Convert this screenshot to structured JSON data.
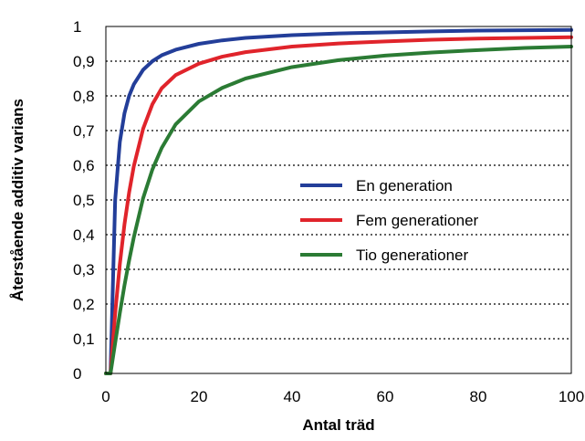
{
  "chart_data": {
    "type": "line",
    "title": "",
    "xlabel": "Antal träd",
    "ylabel": "Återstående additiv varians",
    "xlim": [
      0,
      100
    ],
    "ylim": [
      0,
      1
    ],
    "x_ticks": [
      "0",
      "20",
      "40",
      "60",
      "80",
      "100"
    ],
    "y_ticks": [
      "0",
      "0,1",
      "0,2",
      "0,3",
      "0,4",
      "0,5",
      "0,6",
      "0,7",
      "0,8",
      "0,9",
      "1"
    ],
    "grid": "horizontal dotted",
    "legend_position": "center-right",
    "x": [
      1,
      2,
      3,
      4,
      5,
      6,
      8,
      10,
      12,
      15,
      20,
      25,
      30,
      40,
      50,
      60,
      70,
      80,
      90,
      100
    ],
    "series": [
      {
        "name": "En generation",
        "color": "#233e99",
        "values": [
          0.0,
          0.5,
          0.667,
          0.75,
          0.8,
          0.833,
          0.875,
          0.9,
          0.917,
          0.933,
          0.95,
          0.96,
          0.967,
          0.975,
          0.98,
          0.983,
          0.986,
          0.988,
          0.989,
          0.99
        ]
      },
      {
        "name": "Fem generationer",
        "color": "#e0242b",
        "values": [
          0.0,
          0.173,
          0.315,
          0.43,
          0.522,
          0.597,
          0.705,
          0.776,
          0.822,
          0.86,
          0.893,
          0.913,
          0.926,
          0.942,
          0.951,
          0.957,
          0.962,
          0.965,
          0.967,
          0.969
        ]
      },
      {
        "name": "Tio generationer",
        "color": "#2b7b34",
        "values": [
          0.0,
          0.088,
          0.174,
          0.254,
          0.326,
          0.392,
          0.505,
          0.588,
          0.65,
          0.718,
          0.784,
          0.823,
          0.85,
          0.883,
          0.903,
          0.916,
          0.925,
          0.932,
          0.938,
          0.942
        ]
      }
    ]
  }
}
